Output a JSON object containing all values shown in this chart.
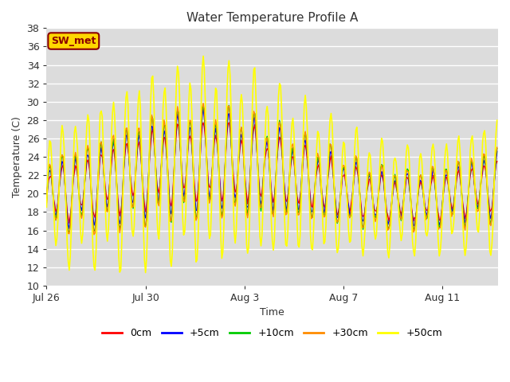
{
  "title": "Water Temperature Profile A",
  "xlabel": "Time",
  "ylabel": "Temperature (C)",
  "ylim": [
    10,
    38
  ],
  "yticks": [
    10,
    12,
    14,
    16,
    18,
    20,
    22,
    24,
    26,
    28,
    30,
    32,
    34,
    36,
    38
  ],
  "annotation": "SW_met",
  "annotation_color": "#8B0000",
  "annotation_bg": "#FFD700",
  "series_colors": [
    "#FF0000",
    "#0000FF",
    "#00CC00",
    "#FF8C00",
    "#FFFF00"
  ],
  "series_labels": [
    "0cm",
    "+5cm",
    "+10cm",
    "+30cm",
    "+50cm"
  ],
  "series_lw": [
    1.0,
    1.0,
    1.0,
    1.0,
    1.2
  ],
  "bg_color": "#DCDCDC",
  "x_tick_labels": [
    "Jul 26",
    "Jul 30",
    "Aug 3",
    "Aug 7",
    "Aug 11"
  ],
  "grid_color": "#FFFFFF",
  "title_color": "#333333",
  "tick_color": "#333333"
}
